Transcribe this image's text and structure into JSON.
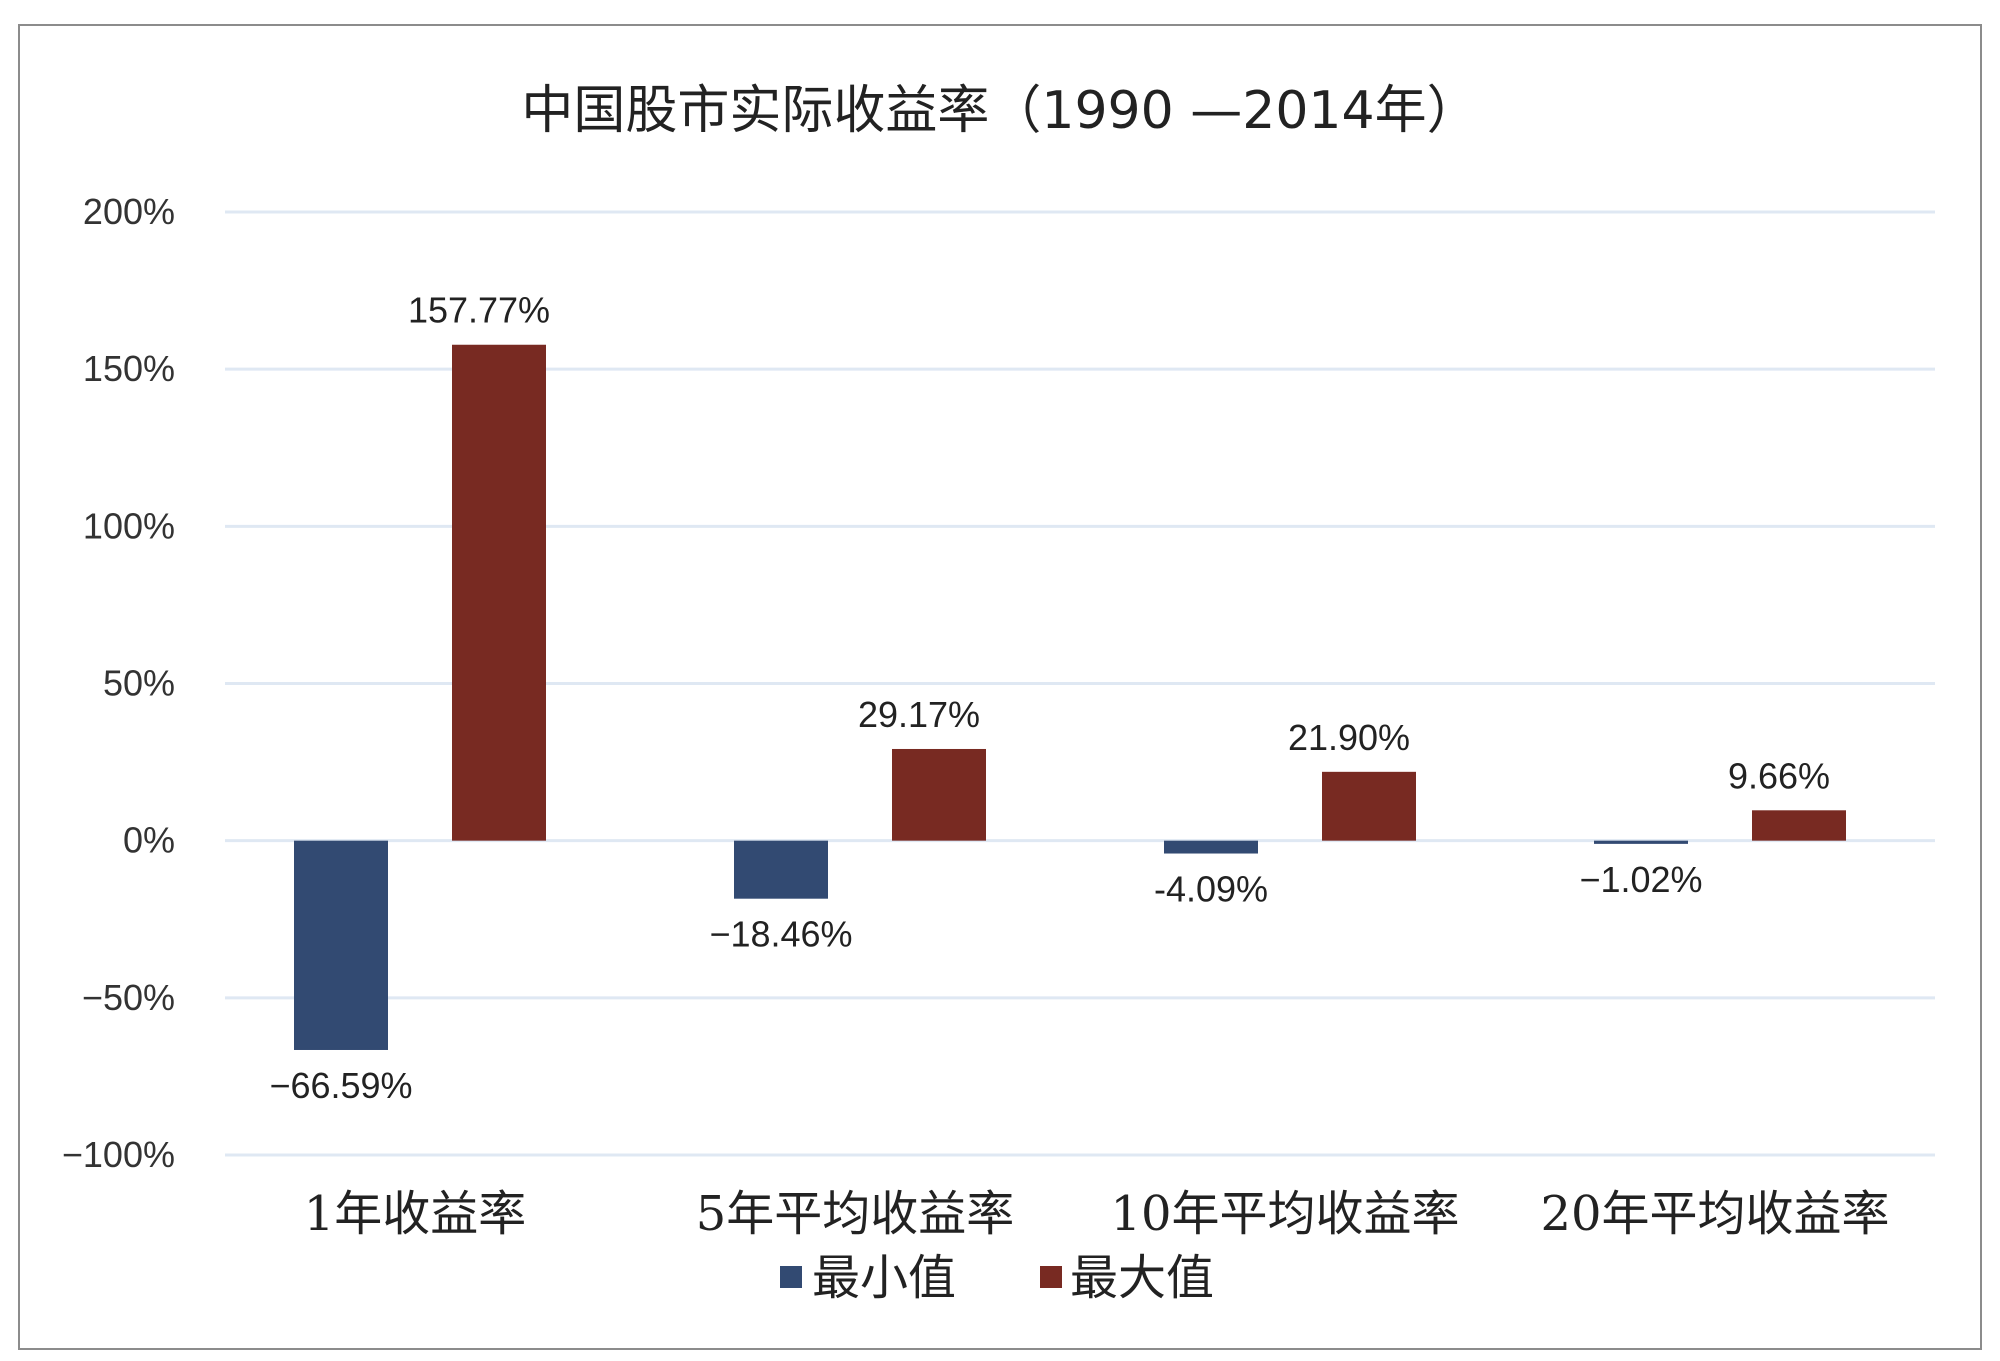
{
  "chart_data": {
    "type": "bar",
    "title": "中国股市实际收益率（1990 —2014年）",
    "xlabel": "",
    "ylabel": "",
    "categories": [
      "1年收益率",
      "5年平均收益率",
      "10年平均收益率",
      "20年平均收益率"
    ],
    "series": [
      {
        "name": "最小值",
        "color": "#324a72",
        "values": [
          -66.59,
          -18.46,
          -4.09,
          -1.02
        ],
        "labels": [
          "−66.59%",
          "−18.46%",
          "-4.09%",
          "−1.02%"
        ]
      },
      {
        "name": "最大值",
        "color": "#782a22",
        "values": [
          157.77,
          29.17,
          21.9,
          9.66
        ],
        "labels": [
          "157.77%",
          "29.17%",
          "21.90%",
          "9.66%"
        ]
      }
    ],
    "ylim": [
      -100,
      200
    ],
    "yticks": [
      200,
      150,
      100,
      50,
      0,
      -50,
      -100
    ],
    "ytick_labels": [
      "200%",
      "150%",
      "100%",
      "50%",
      "0%",
      "−50%",
      "−100%"
    ],
    "grid": true,
    "legend_position": "bottom-center"
  }
}
